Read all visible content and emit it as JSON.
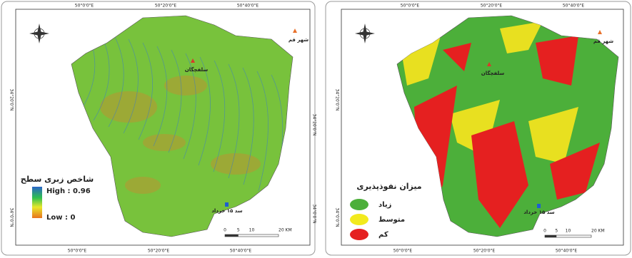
{
  "maps": [
    {
      "grid_labels": {
        "top": [
          "50°0'0\"E",
          "50°20'0\"E",
          "50°40'0\"E"
        ],
        "bottom": [
          "50°0'0\"E",
          "50°20'0\"E",
          "50°40'0\"E"
        ],
        "left": [
          "34°20'0\"N",
          "34°0'0\"N"
        ],
        "right": [
          "34°20'0\"N",
          "34°0'0\"N"
        ]
      },
      "places": [
        "شهر قم",
        "سلفچگان",
        "سد ۱۵ خرداد"
      ],
      "legend": {
        "title": "شاخص زبری سطح",
        "items": [
          "High : 0.96",
          "Low : 0"
        ]
      },
      "scale": [
        "0",
        "5",
        "10",
        "20 KM"
      ]
    },
    {
      "grid_labels": {
        "top": [
          "50°0'0\"E",
          "50°20'0\"E",
          "50°40'0\"E"
        ],
        "bottom": [
          "50°0'0\"E",
          "50°20'0\"E",
          "50°40'0\"E"
        ],
        "left": [
          "34°20'0\"N",
          "34°0'0\"N"
        ]
      },
      "places": [
        "شهر قم",
        "سلفچگان",
        "سد ۱۵ خرداد"
      ],
      "legend": {
        "title": "میزان نفوذپذیری",
        "items": [
          "زیاد",
          "متوسط",
          "کم"
        ]
      },
      "scale": [
        "0",
        "5",
        "10",
        "20 KM"
      ]
    }
  ]
}
